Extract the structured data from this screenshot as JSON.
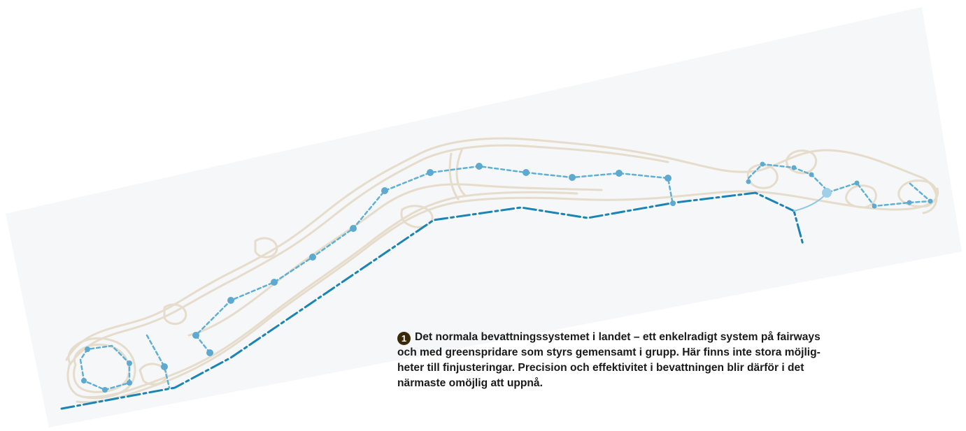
{
  "caption": {
    "number": "1",
    "lines": [
      "Det normala bevattningssystemet i landet – ett enkelradigt system på fairways",
      "och med greenspridare som styrs gemensamt i grupp. Här finns inte stora möjlig-",
      "heter till finjusteringar. Precision och effektivitet i bevattningen blir därför i det",
      "närmaste omöjlig att uppnå."
    ]
  },
  "colors": {
    "course_outline": "#e6dccb",
    "main_pipe": "#1a84b4",
    "lateral_pipe": "#5fb0d4",
    "sprinkler": "#5ea9cf",
    "background_band": "#f6f7f8"
  }
}
